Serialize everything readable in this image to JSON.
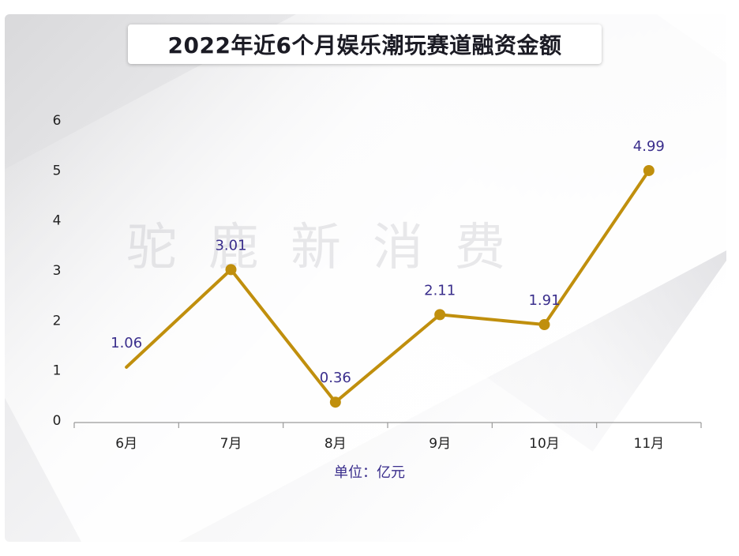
{
  "title": "2022年近6个月娱乐潮玩赛道融资金额",
  "watermark": "驼鹿新消费",
  "unit_label": "单位：亿元",
  "colors": {
    "line": "#c08f0d",
    "data_label": "#3a2e8c",
    "axis": "#9a9a9a",
    "tick_label": "#222222"
  },
  "chart_data": {
    "type": "line",
    "title": "2022年近6个月娱乐潮玩赛道融资金额",
    "categories": [
      "6月",
      "7月",
      "8月",
      "9月",
      "10月",
      "11月"
    ],
    "values": [
      1.06,
      3.01,
      0.36,
      2.11,
      1.91,
      4.99
    ],
    "data_labels": [
      "1.06",
      "3.01",
      "0.36",
      "2.11",
      "1.91",
      "4.99"
    ],
    "ylim": [
      0,
      6
    ],
    "yticks": [
      "0",
      "1",
      "2",
      "3",
      "4",
      "5",
      "6"
    ],
    "xlabel": "单位：亿元",
    "ylabel": "",
    "grid": false,
    "legend": "none"
  }
}
